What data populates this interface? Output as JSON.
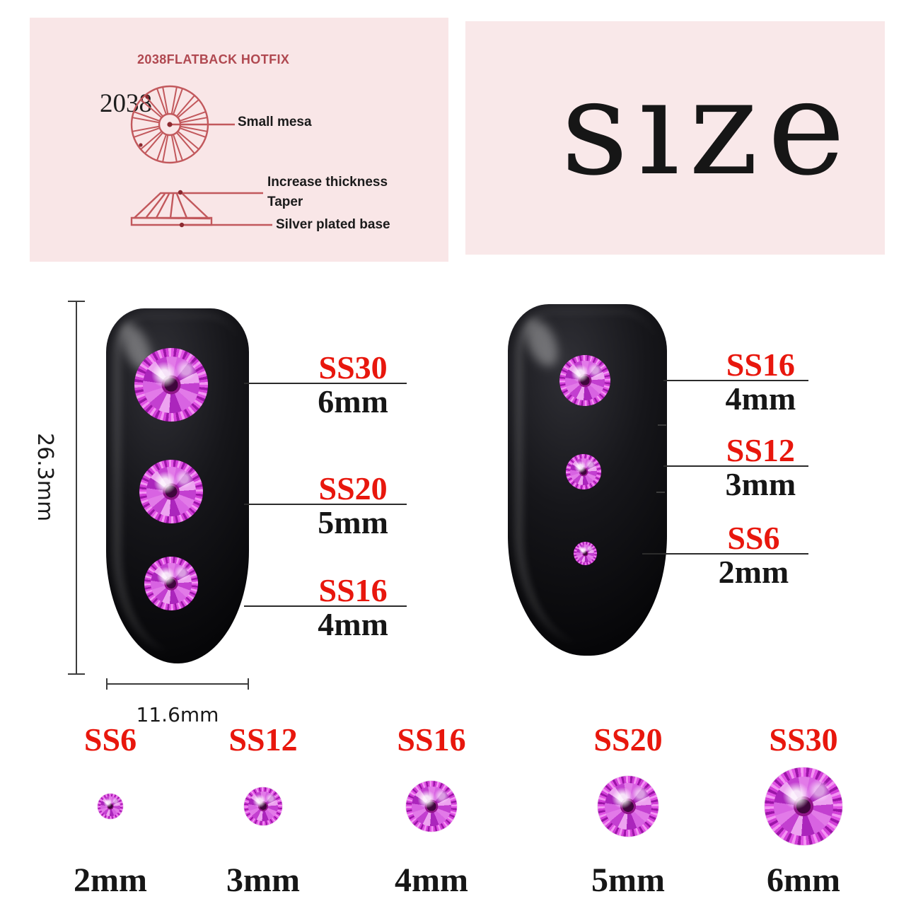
{
  "colors": {
    "panel_pink_left": "#f9e6e7",
    "panel_pink_right": "#f9e8e9",
    "diagram_rose": "#c2585c",
    "header_rose": "#b04850",
    "label_red": "#e8170d",
    "ink_black": "#1a1a1a",
    "gem_magenta": "#cf2ed2",
    "nail_black": "#0a0a0c"
  },
  "spec_panel": {
    "header": "2038FLATBACK HOTFIX",
    "model": "2038",
    "top_view_label": "Small mesa",
    "side_view_labels": [
      "Increase thickness",
      "Taper",
      "Silver plated base"
    ]
  },
  "size_panel": {
    "word": "size",
    "parts": {
      "s": "s",
      "i": "ı",
      "ze": "ze"
    }
  },
  "left_nail": {
    "length_label": "26.3mm",
    "width_label": "11.6mm",
    "callouts": [
      {
        "ss": "SS30",
        "mm": "6mm"
      },
      {
        "ss": "SS20",
        "mm": "5mm"
      },
      {
        "ss": "SS16",
        "mm": "4mm"
      }
    ]
  },
  "right_nail": {
    "callouts": [
      {
        "ss": "SS16",
        "mm": "4mm"
      },
      {
        "ss": "SS12",
        "mm": "3mm"
      },
      {
        "ss": "SS6",
        "mm": "2mm"
      }
    ]
  },
  "size_row": [
    {
      "ss": "SS6",
      "mm": "2mm"
    },
    {
      "ss": "SS12",
      "mm": "3mm"
    },
    {
      "ss": "SS16",
      "mm": "4mm"
    },
    {
      "ss": "SS20",
      "mm": "5mm"
    },
    {
      "ss": "SS30",
      "mm": "6mm"
    }
  ]
}
